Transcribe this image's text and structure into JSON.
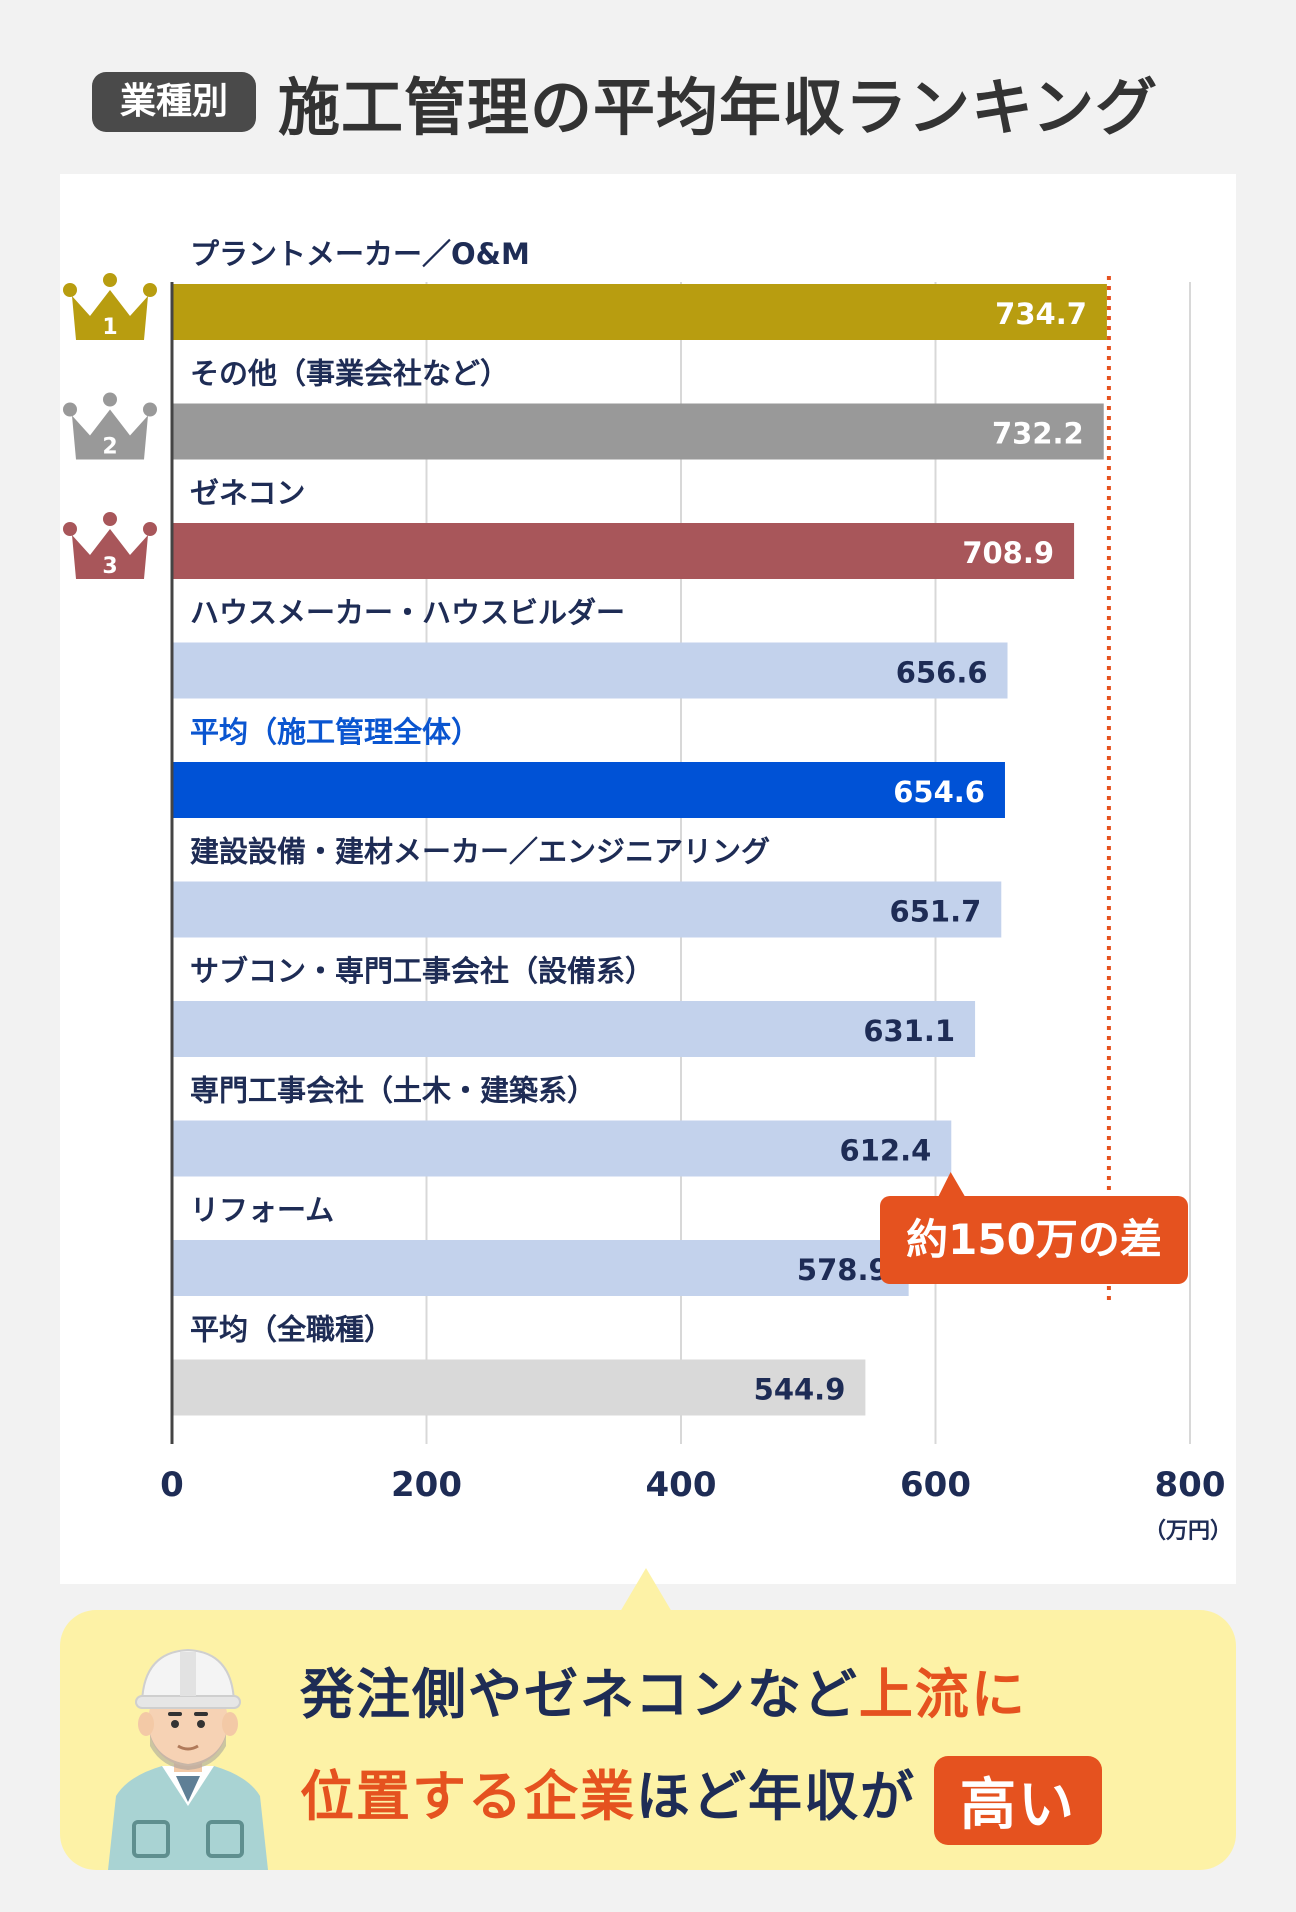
{
  "header": {
    "tag": "業種別",
    "title": "施工管理の平均年収ランキング"
  },
  "chart_data": {
    "type": "bar",
    "orientation": "horizontal",
    "categories": [
      "プラントメーカー／O&M",
      "その他（事業会社など）",
      "ゼネコン",
      "ハウスメーカー・ハウスビルダー",
      "平均（施工管理全体）",
      "建設設備・建材メーカー／エンジニアリング",
      "サブコン・専門工事会社（設備系）",
      "専門工事会社（土木・建築系）",
      "リフォーム",
      "平均（全職種）"
    ],
    "values": [
      734.7,
      732.2,
      708.9,
      656.6,
      654.6,
      651.7,
      631.1,
      612.4,
      578.9,
      544.9
    ],
    "value_labels": [
      "734.7",
      "732.2",
      "708.9",
      "656.6",
      "654.6",
      "651.7",
      "631.1",
      "612.4",
      "578.9",
      "544.9"
    ],
    "bar_colors": [
      "#b89d10",
      "#999999",
      "#a8565a",
      "#c3d2ec",
      "#0052d6",
      "#c3d2ec",
      "#c3d2ec",
      "#c3d2ec",
      "#c3d2ec",
      "#d9d9d9"
    ],
    "label_colors": [
      "#1e2c55",
      "#1e2c55",
      "#1e2c55",
      "#1e2c55",
      "#0a55d0",
      "#1e2c55",
      "#1e2c55",
      "#1e2c55",
      "#1e2c55",
      "#1e2c55"
    ],
    "value_text_colors": [
      "#ffffff",
      "#ffffff",
      "#ffffff",
      "#1e2c55",
      "#ffffff",
      "#1e2c55",
      "#1e2c55",
      "#1e2c55",
      "#1e2c55",
      "#1e2c55"
    ],
    "xlim": [
      0,
      800
    ],
    "xticks": [
      0,
      200,
      400,
      600,
      800
    ],
    "xtick_labels": [
      "0",
      "200",
      "400",
      "600",
      "800"
    ],
    "unit": "（万円）",
    "grid": true,
    "ranks": [
      {
        "rank": "1",
        "color": "#b89d10"
      },
      {
        "rank": "2",
        "color": "#999999"
      },
      {
        "rank": "3",
        "color": "#a8565a"
      }
    ],
    "reference_line": {
      "value": 734.7,
      "color": "#e5521f"
    },
    "annotation": {
      "text": "約150万の差",
      "from": 578.9,
      "to": 734.7,
      "color": "#e5521f"
    }
  },
  "bottom": {
    "line1_a": "発注側やゼネコンなど",
    "line1_b": "上流に",
    "line2_a": "位置する企業",
    "line2_b": "ほど年収が",
    "badge": "高い"
  }
}
